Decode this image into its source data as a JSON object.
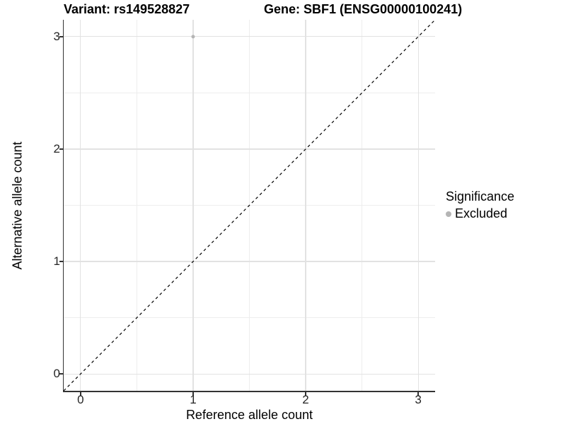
{
  "chart_data": {
    "type": "scatter",
    "title_left": "Variant: rs149528827",
    "title_right": "Gene: SBF1 (ENSG00000100241)",
    "xlabel": "Reference allele count",
    "ylabel": "Alternative allele count",
    "xlim": [
      -0.15,
      3.15
    ],
    "ylim": [
      -0.15,
      3.15
    ],
    "x_ticks": [
      0,
      1,
      2,
      3
    ],
    "y_ticks": [
      0,
      1,
      2,
      3
    ],
    "x_minor_ticks": [
      0.5,
      1.5,
      2.5
    ],
    "y_minor_ticks": [
      0.5,
      1.5,
      2.5
    ],
    "grid": true,
    "legend_position": "right",
    "series": [
      {
        "name": "Excluded",
        "color": "#b5b5b5",
        "points": [
          {
            "x": 1,
            "y": 3
          }
        ]
      }
    ],
    "reference_line": {
      "slope": 1,
      "intercept": 0,
      "linetype": "dashed",
      "color": "#000000"
    },
    "legend": {
      "title": "Significance",
      "items": [
        {
          "label": "Excluded",
          "color": "#b5b5b5"
        }
      ]
    },
    "colors": {
      "grid_major": "#e2e2e2",
      "grid_minor": "#ededed",
      "axis_line": "#333333",
      "tick_text": "#262626",
      "point": "#b5b5b5"
    }
  }
}
